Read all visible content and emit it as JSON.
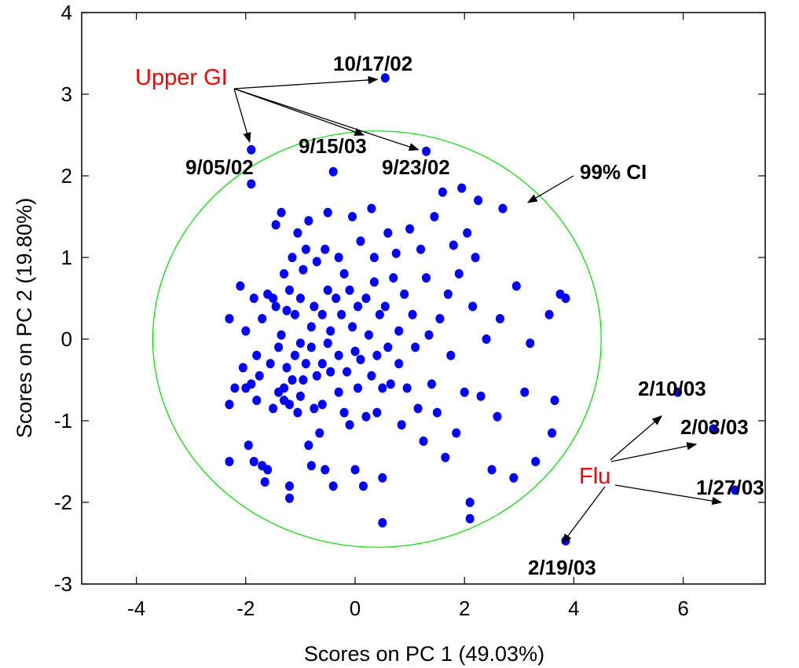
{
  "chart_data": {
    "type": "scatter",
    "xlabel": "Scores on PC 1 (49.03%)",
    "ylabel": "Scores on PC 2 (19.80%)",
    "xlim": [
      -5,
      7.5
    ],
    "ylim": [
      -3,
      4
    ],
    "xticks": [
      -4,
      -2,
      0,
      2,
      4,
      6
    ],
    "yticks": [
      -3,
      -2,
      -1,
      0,
      1,
      2,
      3,
      4
    ],
    "grid": false,
    "colors": {
      "points": "#0000ff",
      "ellipse": "#00dd00",
      "group_labels": "#ff0000",
      "text": "#000000"
    },
    "confidence_region": {
      "label": "99% CI",
      "center": [
        0.4,
        0.0
      ],
      "radius_x": 4.1,
      "radius_y": 2.55
    },
    "series": [
      {
        "points": [
          [
            -2.3,
            -1.5
          ],
          [
            -2.3,
            -0.8
          ],
          [
            -2.3,
            0.25
          ],
          [
            -2.2,
            -0.6
          ],
          [
            -2.1,
            0.65
          ],
          [
            -2.05,
            -0.35
          ],
          [
            -2.0,
            -0.6
          ],
          [
            -2.0,
            0.1
          ],
          [
            -1.95,
            -1.3
          ],
          [
            -1.9,
            -0.55
          ],
          [
            -1.9,
            1.9
          ],
          [
            -1.85,
            0.5
          ],
          [
            -1.85,
            -1.5
          ],
          [
            -1.8,
            -0.2
          ],
          [
            -1.8,
            -0.75
          ],
          [
            -1.75,
            -0.45
          ],
          [
            -1.7,
            -1.55
          ],
          [
            -1.7,
            0.25
          ],
          [
            -1.65,
            -1.75
          ],
          [
            -1.6,
            0.55
          ],
          [
            -1.6,
            -1.6
          ],
          [
            -1.55,
            -0.3
          ],
          [
            -1.5,
            0.5
          ],
          [
            -1.5,
            -0.85
          ],
          [
            -1.45,
            1.4
          ],
          [
            -1.45,
            0.4
          ],
          [
            -1.4,
            -0.65
          ],
          [
            -1.4,
            -0.1
          ],
          [
            -1.35,
            0.05
          ],
          [
            -1.35,
            1.55
          ],
          [
            -1.3,
            0.8
          ],
          [
            -1.3,
            -0.6
          ],
          [
            -1.3,
            -0.75
          ],
          [
            -1.25,
            -0.35
          ],
          [
            -1.25,
            0.35
          ],
          [
            -1.2,
            0.6
          ],
          [
            -1.2,
            -1.8
          ],
          [
            -1.2,
            -1.95
          ],
          [
            -1.2,
            -0.8
          ],
          [
            -1.15,
            1.0
          ],
          [
            -1.15,
            -0.5
          ],
          [
            -1.1,
            -0.2
          ],
          [
            -1.1,
            0.3
          ],
          [
            -1.05,
            -0.9
          ],
          [
            -1.05,
            1.3
          ],
          [
            -1.0,
            0.5
          ],
          [
            -1.0,
            -0.05
          ],
          [
            -1.0,
            -0.7
          ],
          [
            -0.95,
            -0.5
          ],
          [
            -0.95,
            0.85
          ],
          [
            -0.9,
            1.1
          ],
          [
            -0.9,
            -0.3
          ],
          [
            -0.85,
            1.45
          ],
          [
            -0.85,
            -1.3
          ],
          [
            -0.8,
            -0.1
          ],
          [
            -0.8,
            -1.55
          ],
          [
            -0.8,
            0.15
          ],
          [
            -0.75,
            0.4
          ],
          [
            -0.75,
            -0.85
          ],
          [
            -0.7,
            0.95
          ],
          [
            -0.7,
            -0.45
          ],
          [
            -0.65,
            -1.15
          ],
          [
            -0.6,
            -0.8
          ],
          [
            -0.6,
            0.3
          ],
          [
            -0.6,
            -0.3
          ],
          [
            -0.55,
            1.1
          ],
          [
            -0.55,
            -1.6
          ],
          [
            -0.5,
            1.55
          ],
          [
            -0.5,
            -0.05
          ],
          [
            -0.5,
            0.6
          ],
          [
            -0.45,
            -0.4
          ],
          [
            -0.45,
            0.1
          ],
          [
            -0.4,
            2.05
          ],
          [
            -0.4,
            -1.8
          ],
          [
            -0.35,
            0.5
          ],
          [
            -0.3,
            1.0
          ],
          [
            -0.3,
            -0.65
          ],
          [
            -0.3,
            -0.2
          ],
          [
            -0.25,
            0.3
          ],
          [
            -0.2,
            0.8
          ],
          [
            -0.2,
            -0.9
          ],
          [
            -0.15,
            -0.4
          ],
          [
            -0.1,
            0.6
          ],
          [
            -0.1,
            -1.05
          ],
          [
            -0.05,
            1.5
          ],
          [
            -0.05,
            0.15
          ],
          [
            -0.0,
            -0.15
          ],
          [
            0.0,
            -1.6
          ],
          [
            0.05,
            0.4
          ],
          [
            0.05,
            -0.6
          ],
          [
            0.1,
            1.2
          ],
          [
            0.1,
            -0.25
          ],
          [
            0.15,
            -1.8
          ],
          [
            0.2,
            0.5
          ],
          [
            0.2,
            -0.95
          ],
          [
            0.25,
            0.05
          ],
          [
            0.3,
            1.6
          ],
          [
            0.3,
            -0.45
          ],
          [
            0.35,
            0.7
          ],
          [
            0.35,
            1.0
          ],
          [
            0.4,
            -0.2
          ],
          [
            0.4,
            -0.9
          ],
          [
            0.45,
            0.3
          ],
          [
            0.5,
            -1.7
          ],
          [
            0.5,
            -0.6
          ],
          [
            0.5,
            -2.25
          ],
          [
            0.55,
            0.4
          ],
          [
            0.6,
            -0.1
          ],
          [
            0.6,
            1.3
          ],
          [
            0.65,
            -0.55
          ],
          [
            0.7,
            0.75
          ],
          [
            0.75,
            1.05
          ],
          [
            0.8,
            0.1
          ],
          [
            0.8,
            -0.3
          ],
          [
            0.85,
            -1.05
          ],
          [
            0.9,
            0.55
          ],
          [
            0.95,
            -0.6
          ],
          [
            1.0,
            1.35
          ],
          [
            1.05,
            0.3
          ],
          [
            1.1,
            -0.1
          ],
          [
            1.15,
            -0.85
          ],
          [
            1.2,
            1.1
          ],
          [
            1.25,
            -1.25
          ],
          [
            1.3,
            0.75
          ],
          [
            1.35,
            0.05
          ],
          [
            1.4,
            -0.55
          ],
          [
            1.45,
            1.5
          ],
          [
            1.5,
            -0.9
          ],
          [
            1.55,
            0.25
          ],
          [
            1.6,
            1.8
          ],
          [
            1.65,
            -1.45
          ],
          [
            1.7,
            0.55
          ],
          [
            1.75,
            -0.2
          ],
          [
            1.8,
            1.15
          ],
          [
            1.85,
            -1.15
          ],
          [
            1.9,
            0.8
          ],
          [
            1.95,
            1.85
          ],
          [
            2.0,
            -0.65
          ],
          [
            2.05,
            1.3
          ],
          [
            2.1,
            -2.0
          ],
          [
            2.1,
            -2.2
          ],
          [
            2.15,
            0.4
          ],
          [
            2.2,
            1.0
          ],
          [
            2.25,
            1.7
          ],
          [
            2.3,
            -0.7
          ],
          [
            2.4,
            0.0
          ],
          [
            2.5,
            -1.6
          ],
          [
            2.6,
            -0.95
          ],
          [
            2.65,
            0.25
          ],
          [
            2.7,
            1.6
          ],
          [
            2.9,
            -1.7
          ],
          [
            2.95,
            0.65
          ],
          [
            3.1,
            -0.65
          ],
          [
            3.2,
            -0.05
          ],
          [
            3.3,
            -1.5
          ],
          [
            3.55,
            0.3
          ],
          [
            3.6,
            -1.15
          ],
          [
            3.65,
            -0.75
          ],
          [
            3.75,
            0.55
          ],
          [
            3.85,
            0.5
          ],
          [
            -1.9,
            2.32
          ],
          [
            0.55,
            3.2
          ],
          [
            1.3,
            2.3
          ],
          [
            5.9,
            -0.65
          ],
          [
            6.55,
            -1.1
          ],
          [
            6.95,
            -1.85
          ],
          [
            3.85,
            -2.47
          ]
        ]
      }
    ],
    "annotations": {
      "upper_gi": {
        "label": "Upper GI",
        "dates": [
          {
            "text": "10/17/02",
            "point": [
              0.55,
              3.2
            ]
          },
          {
            "text": "9/05/02",
            "point": [
              -1.9,
              2.32
            ]
          },
          {
            "text": "9/15/03",
            "point": [
              1.0,
              2.45
            ]
          },
          {
            "text": "9/23/02",
            "point": [
              1.3,
              2.3
            ]
          }
        ]
      },
      "flu": {
        "label": "Flu",
        "dates": [
          {
            "text": "2/10/03",
            "point": [
              5.9,
              -0.65
            ]
          },
          {
            "text": "2/03/03",
            "point": [
              6.55,
              -1.1
            ]
          },
          {
            "text": "1/27/03",
            "point": [
              6.95,
              -1.85
            ]
          },
          {
            "text": "2/19/03",
            "point": [
              3.85,
              -2.47
            ]
          }
        ]
      },
      "ci_label": "99% CI"
    }
  }
}
